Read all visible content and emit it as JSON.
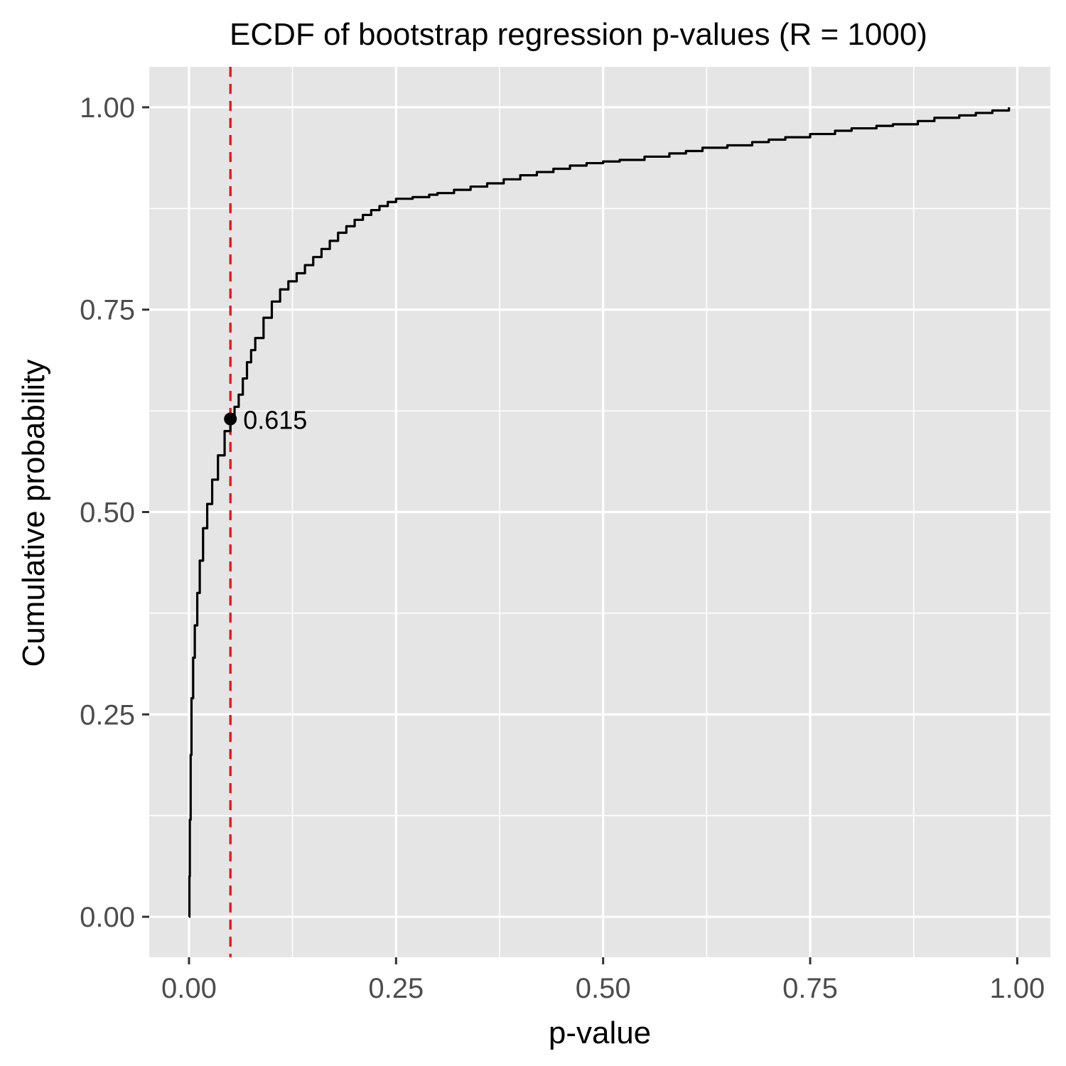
{
  "chart_data": {
    "type": "line",
    "subtype": "ecdf",
    "title": "ECDF of bootstrap regression p-values (R = 1000)",
    "xlabel": "p-value",
    "ylabel": "Cumulative probability",
    "xlim": [
      -0.048,
      1.04
    ],
    "ylim": [
      -0.05,
      1.05
    ],
    "x_ticks": [
      0.0,
      0.25,
      0.5,
      0.75,
      1.0
    ],
    "x_tick_labels": [
      "0.00",
      "0.25",
      "0.50",
      "0.75",
      "1.00"
    ],
    "y_ticks": [
      0.0,
      0.25,
      0.5,
      0.75,
      1.0
    ],
    "y_tick_labels": [
      "0.00",
      "0.25",
      "0.50",
      "0.75",
      "1.00"
    ],
    "grid": true,
    "background": "#e5e5e5",
    "series": [
      {
        "color": "#000000",
        "x": [
          0,
          0.0005,
          0.001,
          0.002,
          0.003,
          0.005,
          0.007,
          0.01,
          0.013,
          0.017,
          0.022,
          0.028,
          0.035,
          0.043,
          0.05,
          0.055,
          0.06,
          0.065,
          0.07,
          0.075,
          0.08,
          0.09,
          0.1,
          0.11,
          0.12,
          0.13,
          0.14,
          0.15,
          0.16,
          0.17,
          0.18,
          0.19,
          0.2,
          0.21,
          0.22,
          0.23,
          0.24,
          0.25,
          0.27,
          0.29,
          0.3,
          0.32,
          0.34,
          0.36,
          0.38,
          0.4,
          0.42,
          0.44,
          0.46,
          0.48,
          0.5,
          0.52,
          0.55,
          0.58,
          0.6,
          0.62,
          0.65,
          0.68,
          0.7,
          0.72,
          0.75,
          0.78,
          0.8,
          0.83,
          0.85,
          0.88,
          0.9,
          0.93,
          0.95,
          0.97,
          0.99
        ],
        "y": [
          0,
          0.05,
          0.12,
          0.2,
          0.27,
          0.32,
          0.36,
          0.4,
          0.44,
          0.48,
          0.51,
          0.54,
          0.57,
          0.6,
          0.615,
          0.63,
          0.645,
          0.665,
          0.685,
          0.7,
          0.715,
          0.74,
          0.76,
          0.775,
          0.785,
          0.795,
          0.805,
          0.815,
          0.825,
          0.835,
          0.845,
          0.853,
          0.861,
          0.867,
          0.873,
          0.878,
          0.883,
          0.887,
          0.889,
          0.892,
          0.894,
          0.898,
          0.902,
          0.906,
          0.911,
          0.916,
          0.92,
          0.924,
          0.928,
          0.931,
          0.933,
          0.935,
          0.939,
          0.943,
          0.946,
          0.95,
          0.953,
          0.957,
          0.96,
          0.963,
          0.967,
          0.971,
          0.974,
          0.977,
          0.979,
          0.983,
          0.987,
          0.99,
          0.993,
          0.996,
          1.0
        ]
      }
    ],
    "reference_line": {
      "orientation": "vertical",
      "x": 0.05,
      "color": "#ff0000",
      "style": "dashed"
    },
    "highlight_point": {
      "x": 0.05,
      "y": 0.615,
      "label": "0.615",
      "color": "#000000"
    }
  }
}
